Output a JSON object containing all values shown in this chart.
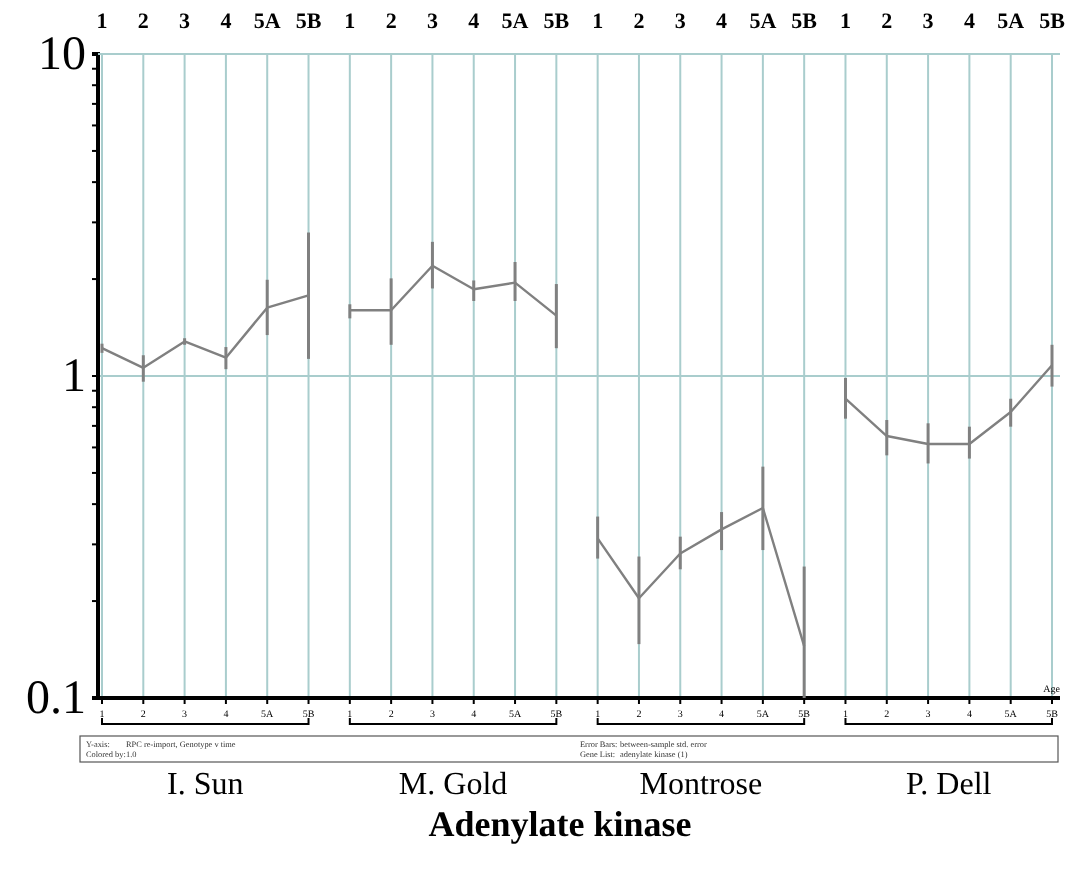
{
  "chart_data": {
    "type": "line",
    "title": "Adenylate kinase",
    "xlabel": "Age",
    "categories": [
      "1",
      "2",
      "3",
      "4",
      "5A",
      "5B",
      "1",
      "2",
      "3",
      "4",
      "5A",
      "5B",
      "1",
      "2",
      "3",
      "4",
      "5A",
      "5B",
      "1",
      "2",
      "3",
      "4",
      "5A",
      "5B"
    ],
    "series": [
      {
        "color": "#808080",
        "values": [
          1.22,
          1.06,
          1.28,
          1.14,
          1.63,
          1.78,
          null,
          null,
          null,
          null,
          null,
          null,
          null,
          null,
          null,
          null,
          null,
          null,
          null,
          null,
          null,
          null,
          null,
          null
        ],
        "errors": [
          [
            1.18,
            1.26
          ],
          [
            0.96,
            1.16
          ],
          [
            1.25,
            1.31
          ],
          [
            1.05,
            1.23
          ],
          [
            1.34,
            1.99
          ],
          [
            1.13,
            2.79
          ],
          null,
          null,
          null,
          null,
          null,
          null,
          null,
          null,
          null,
          null,
          null,
          null,
          null,
          null,
          null,
          null,
          null,
          null
        ]
      },
      {
        "color": "#808080",
        "values": [
          null,
          null,
          null,
          null,
          null,
          null,
          1.6,
          1.6,
          2.2,
          1.86,
          1.95,
          1.54,
          null,
          null,
          null,
          null,
          null,
          null,
          null,
          null,
          null,
          null,
          null,
          null
        ],
        "errors": [
          null,
          null,
          null,
          null,
          null,
          null,
          [
            1.51,
            1.67
          ],
          [
            1.25,
            2.01
          ],
          [
            1.87,
            2.61
          ],
          [
            1.71,
            1.98
          ],
          [
            1.71,
            2.26
          ],
          [
            1.22,
            1.93
          ],
          null,
          null,
          null,
          null,
          null,
          null,
          null,
          null,
          null,
          null,
          null,
          null
        ]
      },
      {
        "color": "#808080",
        "values": [
          null,
          null,
          null,
          null,
          null,
          null,
          null,
          null,
          null,
          null,
          null,
          null,
          0.313,
          0.204,
          0.281,
          0.334,
          0.389,
          0.145,
          null,
          null,
          null,
          null,
          null,
          null
        ],
        "errors": [
          null,
          null,
          null,
          null,
          null,
          null,
          null,
          null,
          null,
          null,
          null,
          null,
          [
            0.271,
            0.366
          ],
          [
            0.147,
            0.275
          ],
          [
            0.251,
            0.317
          ],
          [
            0.288,
            0.378
          ],
          [
            0.288,
            0.523
          ],
          [
            0.1,
            0.256
          ],
          null,
          null,
          null,
          null,
          null,
          null
        ]
      },
      {
        "color": "#808080",
        "values": [
          null,
          null,
          null,
          null,
          null,
          null,
          null,
          null,
          null,
          null,
          null,
          null,
          null,
          null,
          null,
          null,
          null,
          null,
          0.85,
          0.651,
          0.615,
          0.615,
          0.773,
          1.08
        ],
        "errors": [
          null,
          null,
          null,
          null,
          null,
          null,
          null,
          null,
          null,
          null,
          null,
          null,
          null,
          null,
          null,
          null,
          null,
          null,
          [
            0.737,
            0.986
          ],
          [
            0.567,
            0.73
          ],
          [
            0.535,
            0.713
          ],
          [
            0.554,
            0.696
          ],
          [
            0.696,
            0.85
          ],
          [
            0.927,
            1.25
          ]
        ]
      }
    ],
    "log": true,
    "ylim": [
      0.1,
      10
    ],
    "yticks": [
      0.1,
      {
        "value": 0.2,
        "label": null
      },
      {
        "value": 0.3,
        "label": null
      },
      {
        "value": 0.4,
        "label": null
      },
      {
        "value": 0.5,
        "label": null
      },
      {
        "value": 0.6,
        "label": null
      },
      {
        "value": 0.7,
        "label": null
      },
      {
        "value": 0.8,
        "label": null
      },
      {
        "value": 0.9,
        "label": null
      },
      1,
      {
        "value": 2,
        "label": null
      },
      {
        "value": 3,
        "label": null
      },
      {
        "value": 4,
        "label": null
      },
      {
        "value": 5,
        "label": null
      },
      {
        "value": 6,
        "label": null
      },
      {
        "value": 7,
        "label": null
      },
      {
        "value": 8,
        "label": null
      },
      {
        "value": 9,
        "label": null
      },
      10
    ],
    "grid": true,
    "marker": "none",
    "line_style": "solid",
    "annotations": [
      "I. Sun",
      "M. Gold",
      "Montrose",
      "P. Dell",
      "Y-axis:",
      "RPC re-import, Genotype v time",
      "Colored by:",
      "1.0",
      "Error Bars:",
      "between-sample std. error",
      "Gene List:",
      "adenylate kinase (1)"
    ]
  }
}
